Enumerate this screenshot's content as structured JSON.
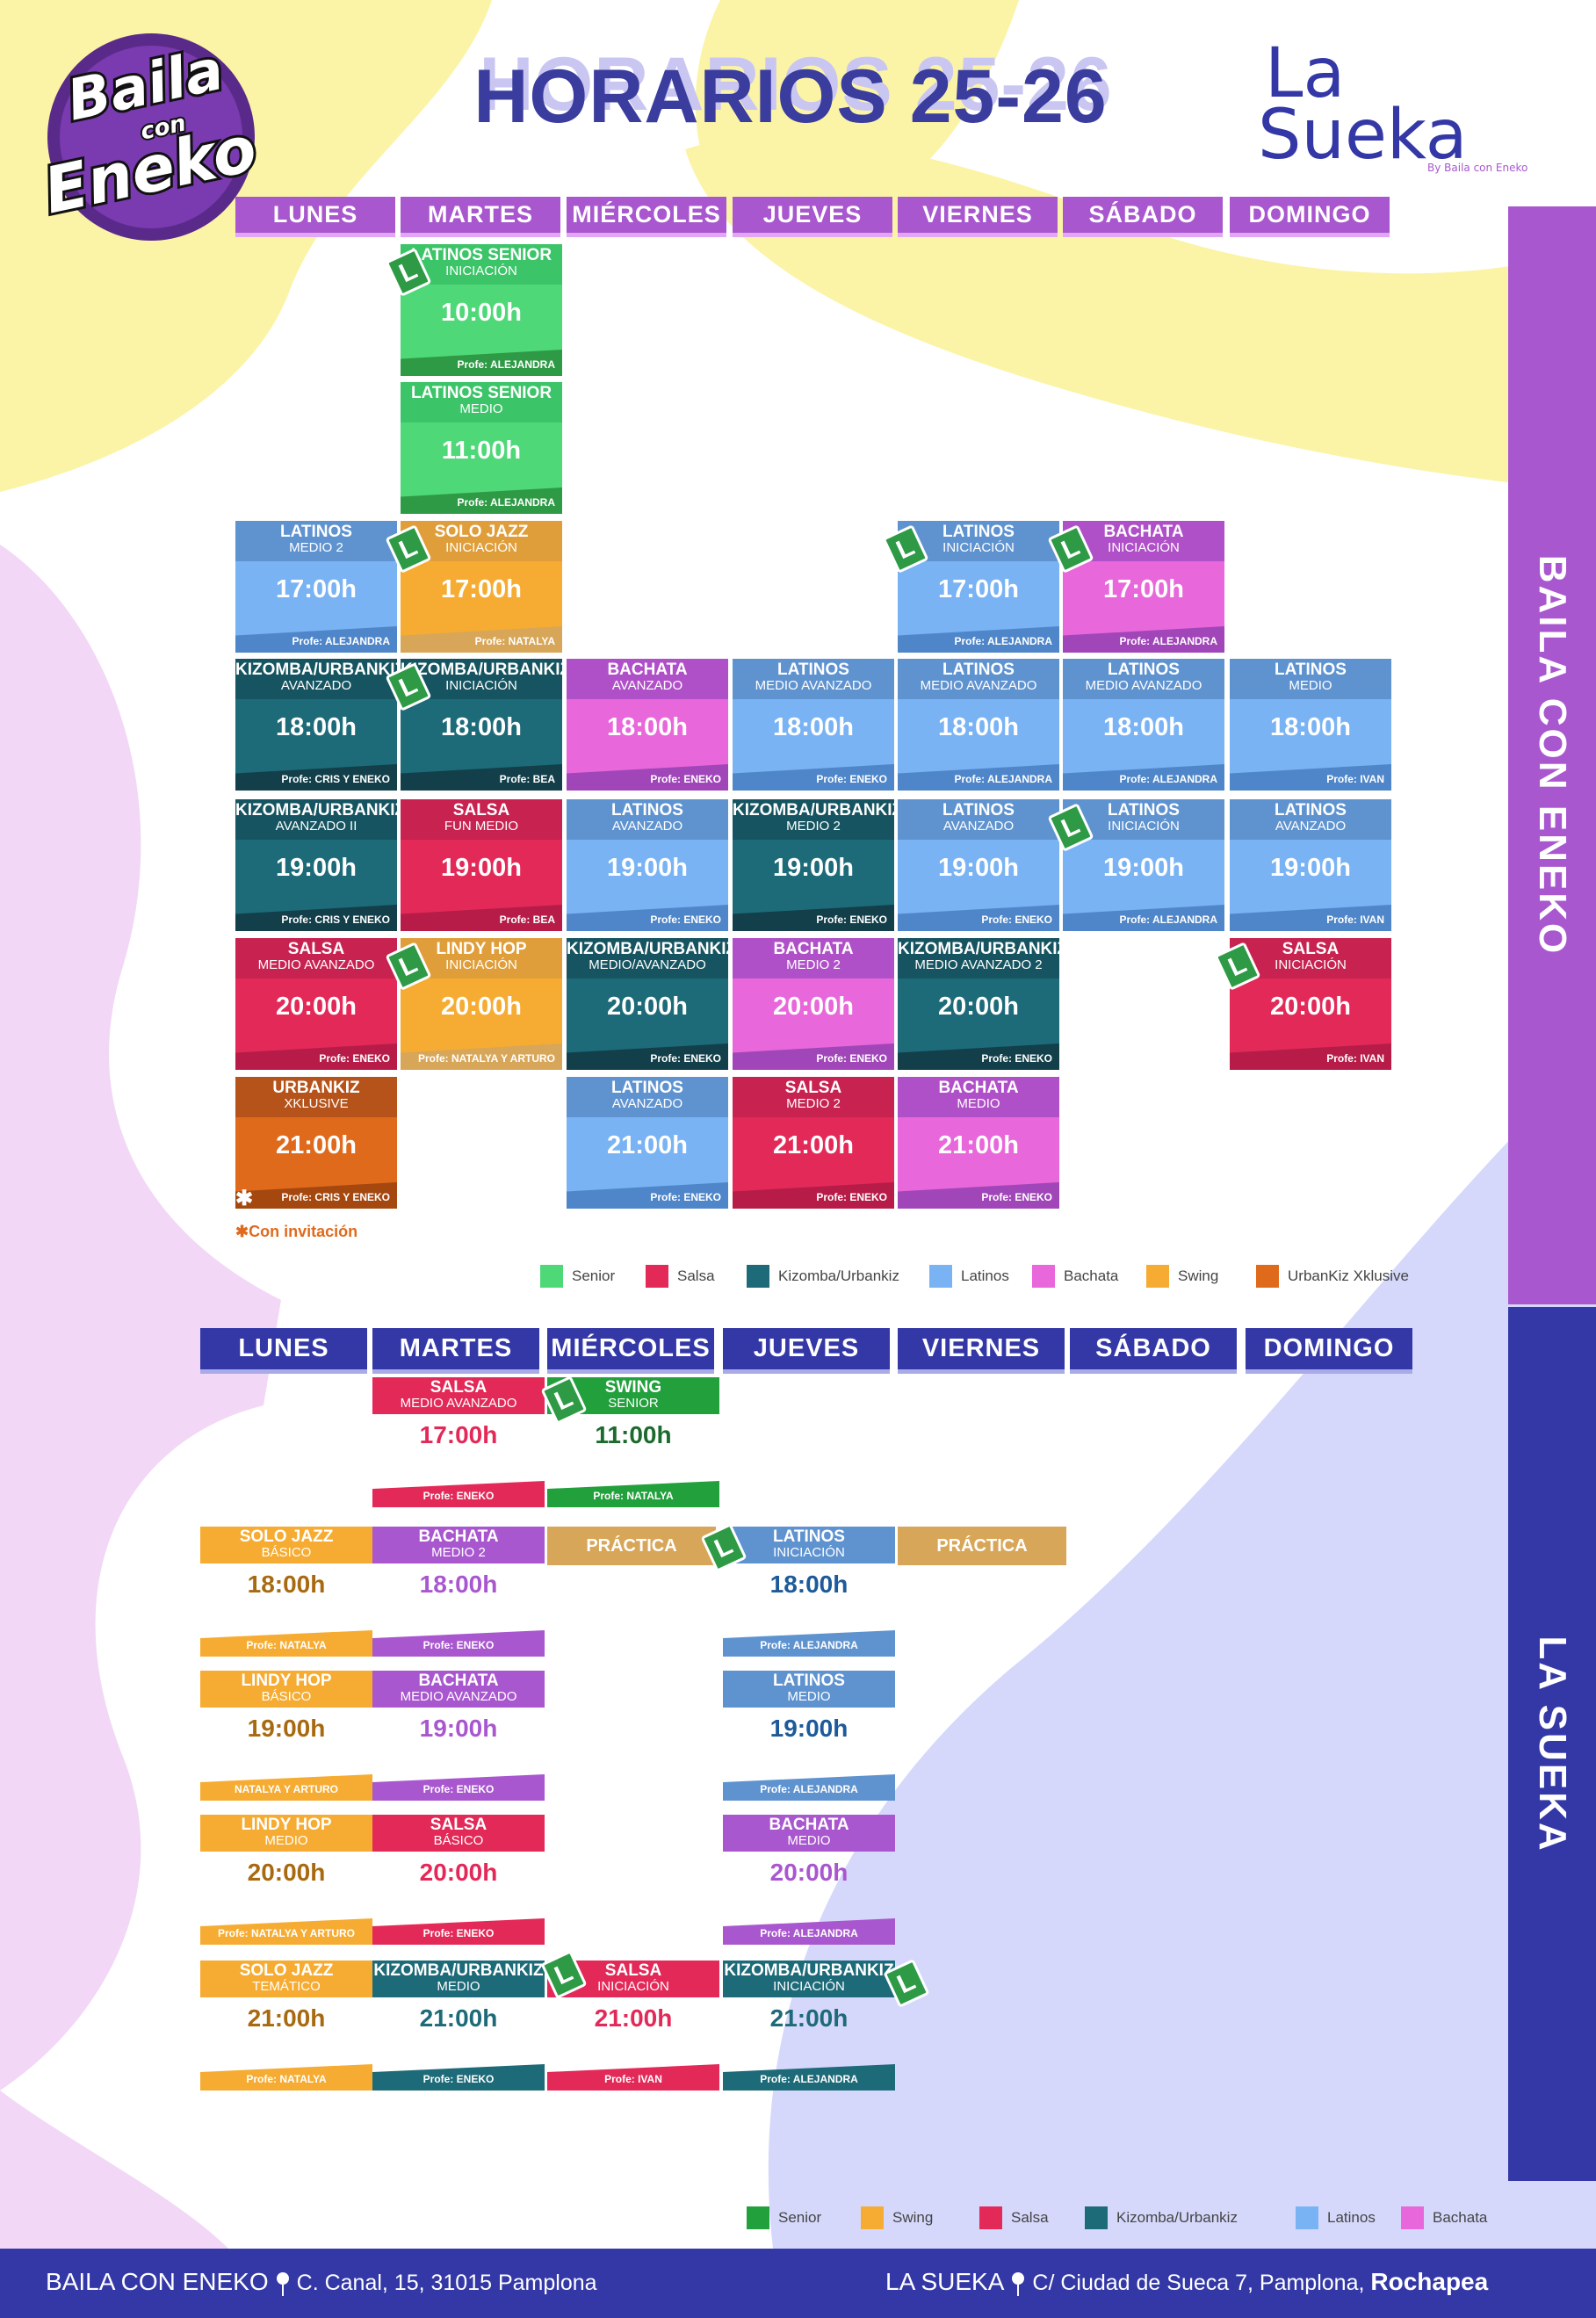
{
  "title": "HORARIOS 25-26",
  "logo_left": {
    "line1": "Baila",
    "line2": "con",
    "line3": "Eneko"
  },
  "logo_right": {
    "line1": "La",
    "line2": "Sueka",
    "sub": "By Baila con Eneko"
  },
  "sidebar": {
    "top": "BAILA CON ENEKO",
    "bottom": "LA SUEKA"
  },
  "colors": {
    "senior": "#4fd878",
    "salsa": "#e32958",
    "kizomba": "#1d6a78",
    "latinos": "#79b3f4",
    "bachata": "#e867da",
    "swing": "#f6ac32",
    "urbankiz": "#e06a1c",
    "sidebar_top": "#a957cf",
    "sidebar_bottom": "#3338a6"
  },
  "section1": {
    "days": [
      "LUNES",
      "MARTES",
      "MIÉRCOLES",
      "JUEVES",
      "VIERNES",
      "SÁBADO",
      "DOMINGO"
    ],
    "classes": [
      {
        "day": 1,
        "row": 0,
        "name": "LATINOS SENIOR",
        "level": "INICIACIÓN",
        "time": "10:00h",
        "prof": "Profe: ALEJANDRA",
        "style": "senior",
        "badge": true
      },
      {
        "day": 1,
        "row": 1,
        "name": "LATINOS SENIOR",
        "level": "MEDIO",
        "time": "11:00h",
        "prof": "Profe: ALEJANDRA",
        "style": "senior",
        "badge": false
      },
      {
        "day": 0,
        "row": 2,
        "name": "LATINOS",
        "level": "MEDIO 2",
        "time": "17:00h",
        "prof": "Profe: ALEJANDRA",
        "style": "latinos",
        "badge": false
      },
      {
        "day": 1,
        "row": 2,
        "name": "SOLO JAZZ",
        "level": "INICIACIÓN",
        "time": "17:00h",
        "prof": "Profe: NATALYA",
        "style": "swing",
        "badge": true
      },
      {
        "day": 4,
        "row": 2,
        "name": "LATINOS",
        "level": "INICIACIÓN",
        "time": "17:00h",
        "prof": "Profe: ALEJANDRA",
        "style": "latinos",
        "badge": true
      },
      {
        "day": 5,
        "row": 2,
        "name": "BACHATA",
        "level": "INICIACIÓN",
        "time": "17:00h",
        "prof": "Profe: ALEJANDRA",
        "style": "bachata",
        "badge": true
      },
      {
        "day": 0,
        "row": 3,
        "name": "KIZOMBA/URBANKIZ",
        "level": "AVANZADO",
        "time": "18:00h",
        "prof": "Profe: CRIS Y ENEKO",
        "style": "kizomba",
        "badge": false
      },
      {
        "day": 1,
        "row": 3,
        "name": "KIZOMBA/URBANKIZ",
        "level": "INICIACIÓN",
        "time": "18:00h",
        "prof": "Profe: BEA",
        "style": "kizomba",
        "badge": true
      },
      {
        "day": 2,
        "row": 3,
        "name": "BACHATA",
        "level": "AVANZADO",
        "time": "18:00h",
        "prof": "Profe: ENEKO",
        "style": "bachata",
        "badge": false
      },
      {
        "day": 3,
        "row": 3,
        "name": "LATINOS",
        "level": "MEDIO AVANZADO",
        "time": "18:00h",
        "prof": "Profe: ENEKO",
        "style": "latinos",
        "badge": false
      },
      {
        "day": 4,
        "row": 3,
        "name": "LATINOS",
        "level": "MEDIO AVANZADO",
        "time": "18:00h",
        "prof": "Profe: ALEJANDRA",
        "style": "latinos",
        "badge": false
      },
      {
        "day": 5,
        "row": 3,
        "name": "LATINOS",
        "level": "MEDIO AVANZADO",
        "time": "18:00h",
        "prof": "Profe: ALEJANDRA",
        "style": "latinos",
        "badge": false
      },
      {
        "day": 6,
        "row": 3,
        "name": "LATINOS",
        "level": "MEDIO",
        "time": "18:00h",
        "prof": "Profe: IVAN",
        "style": "latinos",
        "badge": false
      },
      {
        "day": 0,
        "row": 4,
        "name": "KIZOMBA/URBANKIZ",
        "level": "AVANZADO II",
        "time": "19:00h",
        "prof": "Profe: CRIS Y ENEKO",
        "style": "kizomba",
        "badge": false
      },
      {
        "day": 1,
        "row": 4,
        "name": "SALSA",
        "level": "FUN MEDIO",
        "time": "19:00h",
        "prof": "Profe: BEA",
        "style": "salsa",
        "badge": false
      },
      {
        "day": 2,
        "row": 4,
        "name": "LATINOS",
        "level": "AVANZADO",
        "time": "19:00h",
        "prof": "Profe: ENEKO",
        "style": "latinos",
        "badge": false
      },
      {
        "day": 3,
        "row": 4,
        "name": "KIZOMBA/URBANKIZ",
        "level": "MEDIO 2",
        "time": "19:00h",
        "prof": "Profe: ENEKO",
        "style": "kizomba",
        "badge": false
      },
      {
        "day": 4,
        "row": 4,
        "name": "LATINOS",
        "level": "AVANZADO",
        "time": "19:00h",
        "prof": "Profe: ENEKO",
        "style": "latinos",
        "badge": false
      },
      {
        "day": 5,
        "row": 4,
        "name": "LATINOS",
        "level": "INICIACIÓN",
        "time": "19:00h",
        "prof": "Profe: ALEJANDRA",
        "style": "latinos",
        "badge": true
      },
      {
        "day": 6,
        "row": 4,
        "name": "LATINOS",
        "level": "AVANZADO",
        "time": "19:00h",
        "prof": "Profe: IVAN",
        "style": "latinos",
        "badge": false
      },
      {
        "day": 0,
        "row": 5,
        "name": "SALSA",
        "level": "MEDIO AVANZADO",
        "time": "20:00h",
        "prof": "Profe: ENEKO",
        "style": "salsa",
        "badge": false
      },
      {
        "day": 1,
        "row": 5,
        "name": "LINDY HOP",
        "level": "INICIACIÓN",
        "time": "20:00h",
        "prof": "Profe: NATALYA Y ARTURO",
        "style": "swing",
        "badge": true
      },
      {
        "day": 2,
        "row": 5,
        "name": "KIZOMBA/URBANKIZ",
        "level": "MEDIO/AVANZADO",
        "time": "20:00h",
        "prof": "Profe: ENEKO",
        "style": "kizomba",
        "badge": false
      },
      {
        "day": 3,
        "row": 5,
        "name": "BACHATA",
        "level": "MEDIO 2",
        "time": "20:00h",
        "prof": "Profe: ENEKO",
        "style": "bachata",
        "badge": false
      },
      {
        "day": 4,
        "row": 5,
        "name": "KIZOMBA/URBANKIZ",
        "level": "MEDIO AVANZADO 2",
        "time": "20:00h",
        "prof": "Profe: ENEKO",
        "style": "kizomba",
        "badge": false
      },
      {
        "day": 6,
        "row": 5,
        "name": "SALSA",
        "level": "INICIACIÓN",
        "time": "20:00h",
        "prof": "Profe: IVAN",
        "style": "salsa",
        "badge": true
      },
      {
        "day": 0,
        "row": 6,
        "name": "URBANKIZ",
        "level": "XKLUSIVE",
        "time": "21:00h",
        "prof": "Profe: CRIS Y ENEKO",
        "style": "urbankiz",
        "badge": false
      },
      {
        "day": 2,
        "row": 6,
        "name": "LATINOS",
        "level": "AVANZADO",
        "time": "21:00h",
        "prof": "Profe: ENEKO",
        "style": "latinos",
        "badge": false
      },
      {
        "day": 3,
        "row": 6,
        "name": "SALSA",
        "level": "MEDIO 2",
        "time": "21:00h",
        "prof": "Profe: ENEKO",
        "style": "salsa",
        "badge": false
      },
      {
        "day": 4,
        "row": 6,
        "name": "BACHATA",
        "level": "MEDIO",
        "time": "21:00h",
        "prof": "Profe: ENEKO",
        "style": "bachata",
        "badge": false
      }
    ],
    "note": "✱Con invitación",
    "star": "✱",
    "legend": [
      {
        "label": "Senior",
        "style": "senior"
      },
      {
        "label": "Salsa",
        "style": "salsa"
      },
      {
        "label": "Kizomba/Urbankiz",
        "style": "kizomba"
      },
      {
        "label": "Latinos",
        "style": "latinos"
      },
      {
        "label": "Bachata",
        "style": "bachata"
      },
      {
        "label": "Swing",
        "style": "swing"
      },
      {
        "label": "UrbanKiz Xklusive",
        "style": "urbankiz"
      }
    ]
  },
  "section2": {
    "days": [
      "LUNES",
      "MARTES",
      "MIÉRCOLES",
      "JUEVES",
      "VIERNES",
      "SÁBADO",
      "DOMINGO"
    ],
    "classes": [
      {
        "day": 1,
        "row": 0,
        "name": "SALSA",
        "level": "MEDIO AVANZADO",
        "time": "17:00h",
        "prof": "Profe: ENEKO",
        "style": "salsa",
        "badge": false
      },
      {
        "day": 2,
        "row": 0,
        "name": "SWING",
        "level": "SENIOR",
        "time": "11:00h",
        "prof": "Profe: NATALYA",
        "style": "senior2",
        "badge": true
      },
      {
        "day": 0,
        "row": 1,
        "name": "SOLO JAZZ",
        "level": "BÁSICO",
        "time": "18:00h",
        "prof": "Profe: NATALYA",
        "style": "swing",
        "badge": false
      },
      {
        "day": 1,
        "row": 1,
        "name": "BACHATA",
        "level": "MEDIO 2",
        "time": "18:00h",
        "prof": "Profe: ENEKO",
        "style": "bachata2",
        "badge": false
      },
      {
        "day": 3,
        "row": 1,
        "name": "LATINOS",
        "level": "INICIACIÓN",
        "time": "18:00h",
        "prof": "Profe: ALEJANDRA",
        "style": "latinos2",
        "badge": true
      },
      {
        "day": 0,
        "row": 2,
        "name": "LINDY HOP",
        "level": "BÁSICO",
        "time": "19:00h",
        "prof": "NATALYA Y ARTURO",
        "style": "swing",
        "badge": false
      },
      {
        "day": 1,
        "row": 2,
        "name": "BACHATA",
        "level": "MEDIO AVANZADO",
        "time": "19:00h",
        "prof": "Profe: ENEKO",
        "style": "bachata2",
        "badge": false
      },
      {
        "day": 3,
        "row": 2,
        "name": "LATINOS",
        "level": "MEDIO",
        "time": "19:00h",
        "prof": "Profe: ALEJANDRA",
        "style": "latinos2",
        "badge": false
      },
      {
        "day": 0,
        "row": 3,
        "name": "LINDY HOP",
        "level": "MEDIO",
        "time": "20:00h",
        "prof": "Profe: NATALYA Y ARTURO",
        "style": "swing",
        "badge": false
      },
      {
        "day": 1,
        "row": 3,
        "name": "SALSA",
        "level": "BÁSICO",
        "time": "20:00h",
        "prof": "Profe: ENEKO",
        "style": "salsa",
        "badge": false
      },
      {
        "day": 3,
        "row": 3,
        "name": "BACHATA",
        "level": "MEDIO",
        "time": "20:00h",
        "prof": "Profe: ALEJANDRA",
        "style": "bachata2",
        "badge": false
      },
      {
        "day": 0,
        "row": 4,
        "name": "SOLO JAZZ",
        "level": "TEMÁTICO",
        "time": "21:00h",
        "prof": "Profe: NATALYA",
        "style": "swing",
        "badge": false
      },
      {
        "day": 1,
        "row": 4,
        "name": "KIZOMBA/URBANKIZ",
        "level": "MEDIO",
        "time": "21:00h",
        "prof": "Profe: ENEKO",
        "style": "kizomba",
        "badge": false
      },
      {
        "day": 2,
        "row": 4,
        "name": "SALSA",
        "level": "INICIACIÓN",
        "time": "21:00h",
        "prof": "Profe: IVAN",
        "style": "salsa",
        "badge": true
      },
      {
        "day": 3,
        "row": 4,
        "name": "KIZOMBA/URBANKIZ",
        "level": "INICIACIÓN",
        "time": "21:00h",
        "prof": "Profe: ALEJANDRA",
        "style": "kizomba",
        "badge": true
      }
    ],
    "practica": [
      {
        "day": 2,
        "label": "PRÁCTICA"
      },
      {
        "day": 4,
        "label": "PRÁCTICA"
      }
    ],
    "legend": [
      {
        "label": "Senior",
        "style": "senior2"
      },
      {
        "label": "Swing",
        "style": "swing"
      },
      {
        "label": "Salsa",
        "style": "salsa"
      },
      {
        "label": "Kizomba/Urbankiz",
        "style": "kizomba"
      },
      {
        "label": "Latinos",
        "style": "latinos"
      },
      {
        "label": "Bachata",
        "style": "bachata"
      }
    ]
  },
  "footer": {
    "left_name": "BAILA CON ENEKO",
    "left_address": "C. Canal, 15, 31015 Pamplona",
    "right_name": "LA SUEKA",
    "right_address": "C/ Ciudad de Sueca 7, Pamplona, ",
    "right_bold": "Rochapea"
  },
  "badge_letter": "L"
}
